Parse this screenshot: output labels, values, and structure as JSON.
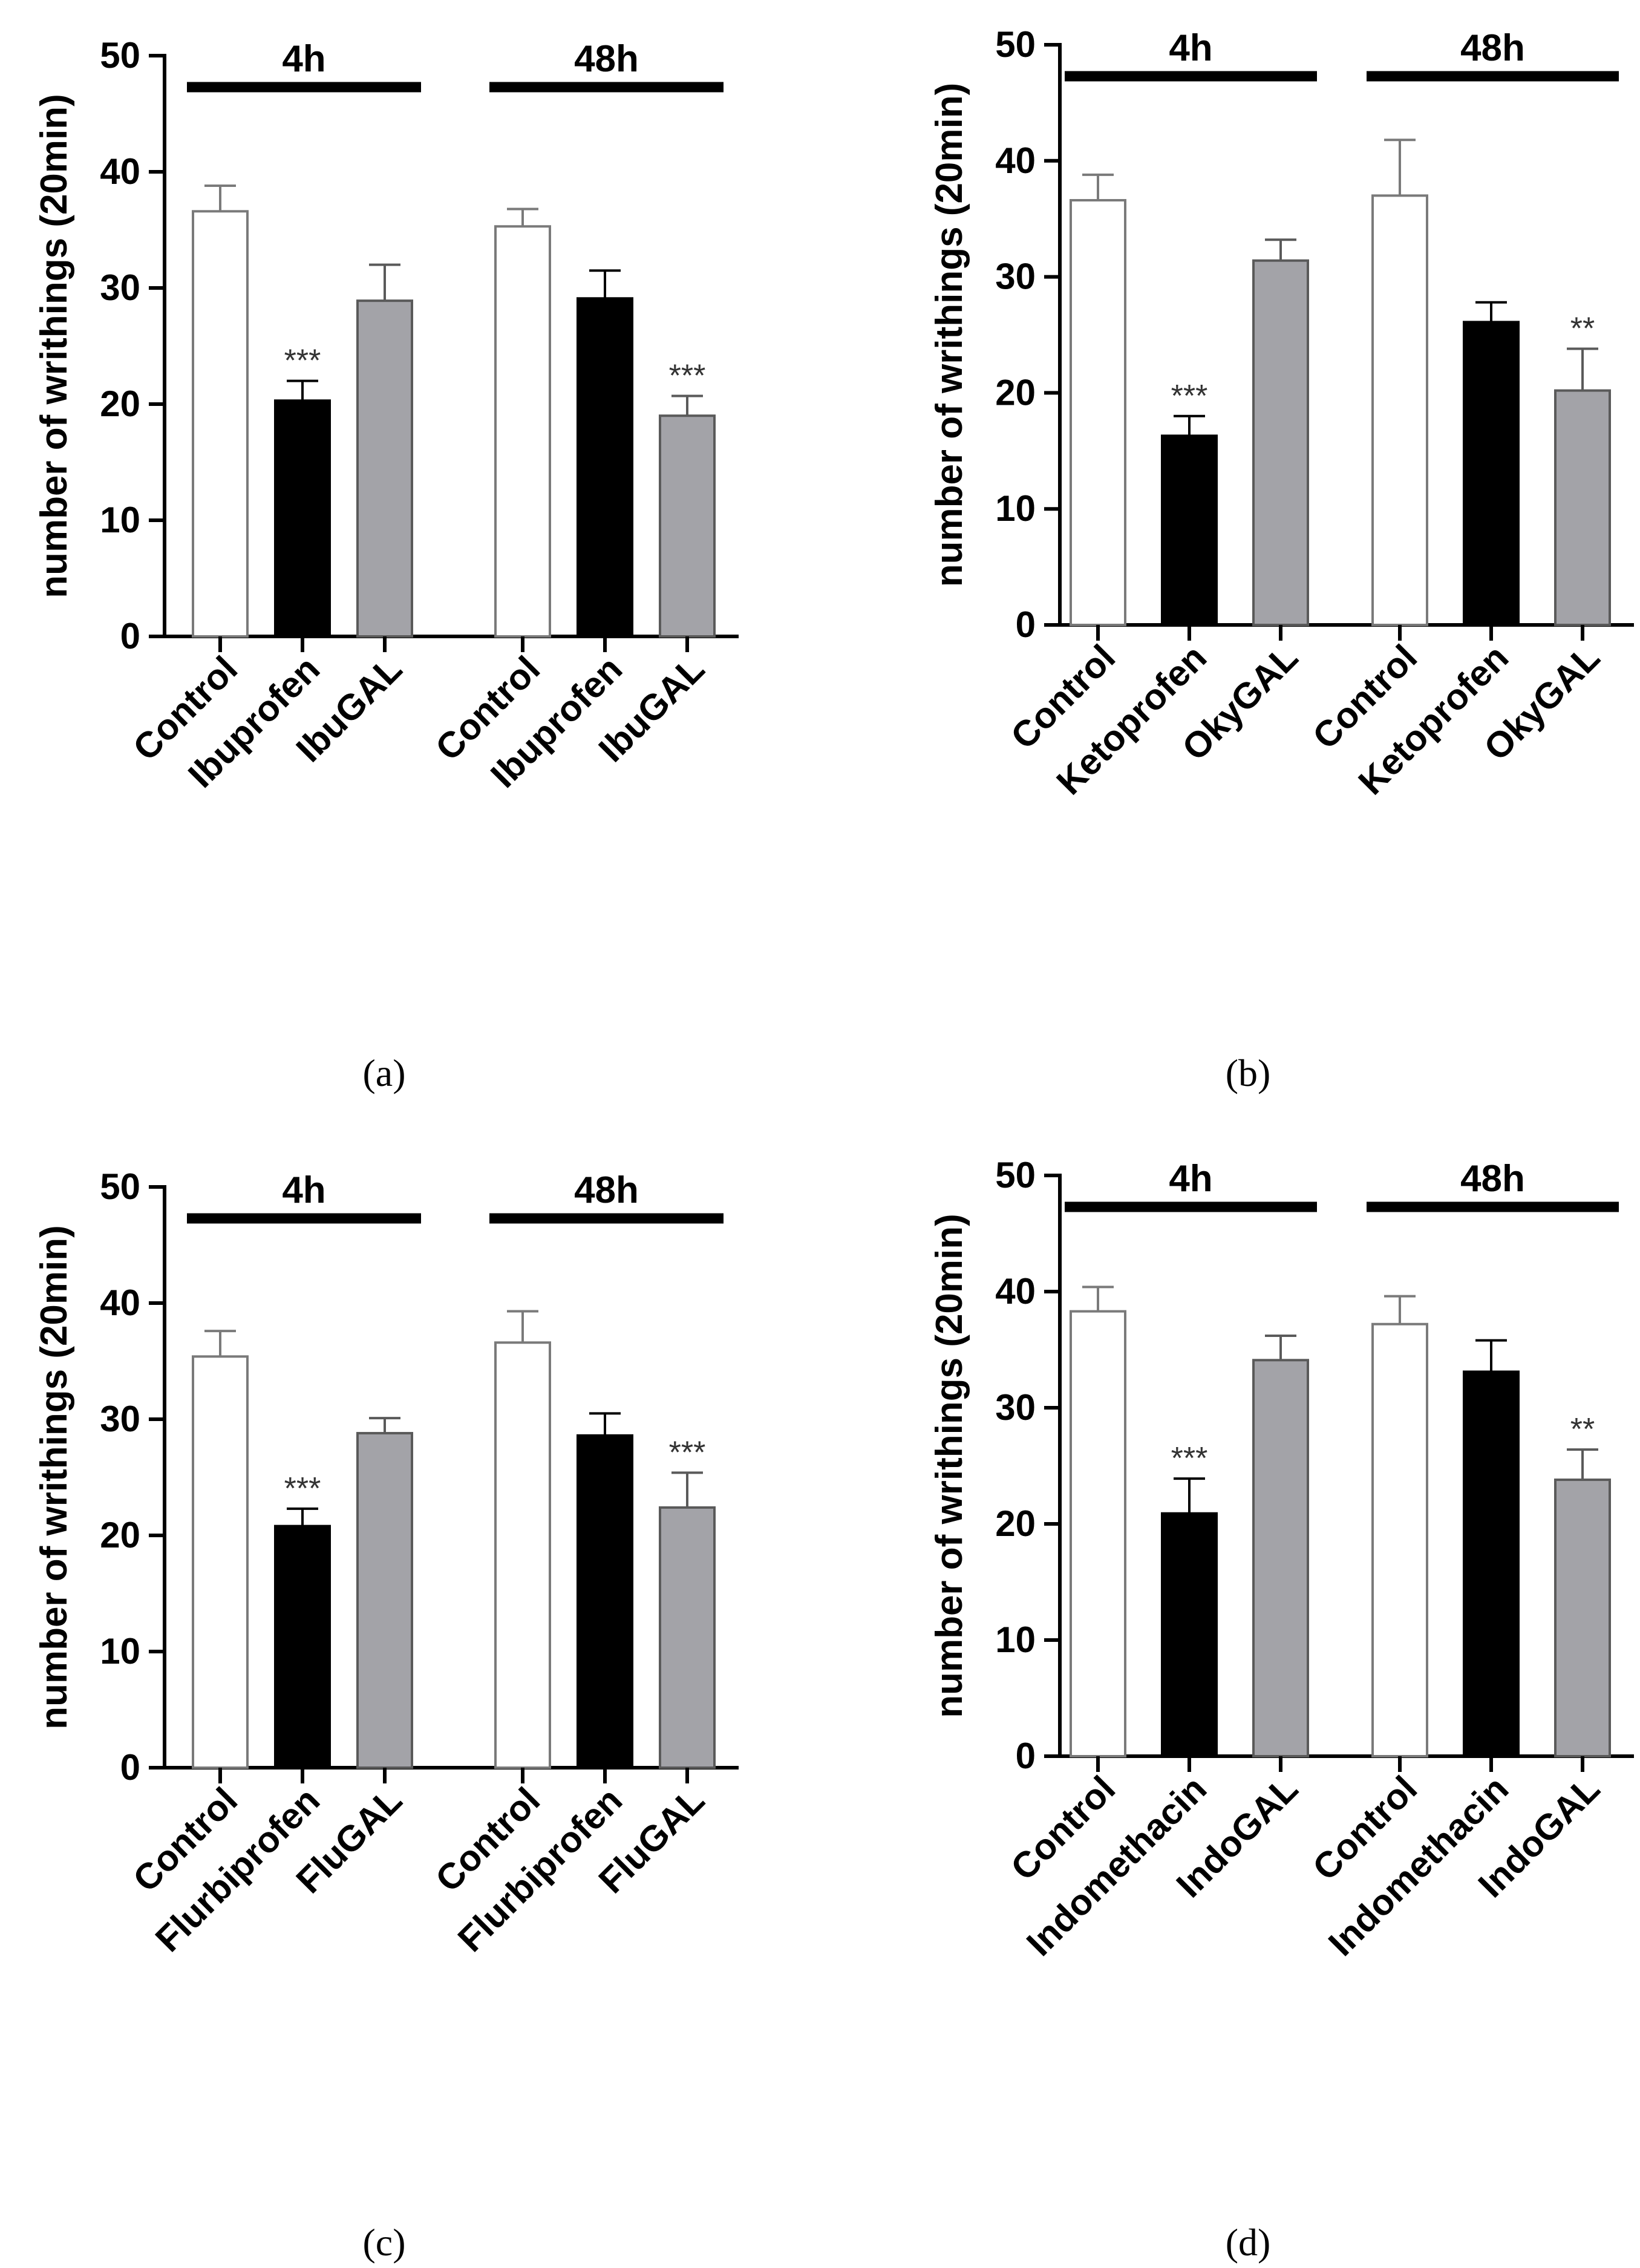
{
  "colors": {
    "control": "#ffffff",
    "drug": "#000000",
    "conjugate": "#a3a3a8",
    "axis": "#000000",
    "control_edge": "#7a7a7a",
    "conjugate_edge": "#5a5a5a"
  },
  "chart_data": [
    {
      "type": "bar",
      "panel": "(a)",
      "ylabel": "number of writhings (20min)",
      "ylim": [
        0,
        50
      ],
      "yticks": [
        "0",
        "10",
        "20",
        "30",
        "40",
        "50"
      ],
      "groups": [
        {
          "label": "4h",
          "bars": [
            {
              "category": "Control",
              "series": "control",
              "value": 36.6,
              "error": 2.2,
              "sig": ""
            },
            {
              "category": "Ibuprofen",
              "series": "drug",
              "value": 20.3,
              "error": 1.7,
              "sig": "***"
            },
            {
              "category": "IbuGAL",
              "series": "conjugate",
              "value": 28.9,
              "error": 3.1,
              "sig": ""
            }
          ]
        },
        {
          "label": "48h",
          "bars": [
            {
              "category": "Control",
              "series": "control",
              "value": 35.3,
              "error": 1.5,
              "sig": ""
            },
            {
              "category": "Ibuprofen",
              "series": "drug",
              "value": 29.1,
              "error": 2.4,
              "sig": ""
            },
            {
              "category": "IbuGAL",
              "series": "conjugate",
              "value": 19.0,
              "error": 1.7,
              "sig": "***"
            }
          ]
        }
      ]
    },
    {
      "type": "bar",
      "panel": "(b)",
      "ylabel": "number of writhings (20min)",
      "ylim": [
        0,
        50
      ],
      "yticks": [
        "0",
        "10",
        "20",
        "30",
        "40",
        "50"
      ],
      "groups": [
        {
          "label": "4h",
          "bars": [
            {
              "category": "Control",
              "series": "control",
              "value": 36.6,
              "error": 2.2,
              "sig": ""
            },
            {
              "category": "Ketoprofen",
              "series": "drug",
              "value": 16.3,
              "error": 1.7,
              "sig": "***"
            },
            {
              "category": "OkyGAL",
              "series": "conjugate",
              "value": 31.4,
              "error": 1.8,
              "sig": ""
            }
          ]
        },
        {
          "label": "48h",
          "bars": [
            {
              "category": "Control",
              "series": "control",
              "value": 37.0,
              "error": 4.8,
              "sig": ""
            },
            {
              "category": "Ketoprofen",
              "series": "drug",
              "value": 26.1,
              "error": 1.7,
              "sig": ""
            },
            {
              "category": "OkyGAL",
              "series": "conjugate",
              "value": 20.2,
              "error": 3.6,
              "sig": "**"
            }
          ]
        }
      ]
    },
    {
      "type": "bar",
      "panel": "(c)",
      "ylabel": "number of writhings (20min)",
      "ylim": [
        0,
        50
      ],
      "yticks": [
        "0",
        "10",
        "20",
        "30",
        "40",
        "50"
      ],
      "groups": [
        {
          "label": "4h",
          "bars": [
            {
              "category": "Control",
              "series": "control",
              "value": 35.4,
              "error": 2.2,
              "sig": ""
            },
            {
              "category": "Flurbiprofen",
              "series": "drug",
              "value": 20.8,
              "error": 1.5,
              "sig": "***"
            },
            {
              "category": "FluGAL",
              "series": "conjugate",
              "value": 28.8,
              "error": 1.3,
              "sig": ""
            }
          ]
        },
        {
          "label": "48h",
          "bars": [
            {
              "category": "Control",
              "series": "control",
              "value": 36.6,
              "error": 2.7,
              "sig": ""
            },
            {
              "category": "Flurbiprofen",
              "series": "drug",
              "value": 28.6,
              "error": 1.9,
              "sig": ""
            },
            {
              "category": "FluGAL",
              "series": "conjugate",
              "value": 22.4,
              "error": 3.0,
              "sig": "***"
            }
          ]
        }
      ]
    },
    {
      "type": "bar",
      "panel": "(d)",
      "ylabel": "number of writhings (20min)",
      "ylim": [
        0,
        50
      ],
      "yticks": [
        "0",
        "10",
        "20",
        "30",
        "40",
        "50"
      ],
      "groups": [
        {
          "label": "4h",
          "bars": [
            {
              "category": "Control",
              "series": "control",
              "value": 38.3,
              "error": 2.1,
              "sig": ""
            },
            {
              "category": "Indomethacin",
              "series": "drug",
              "value": 20.9,
              "error": 3.0,
              "sig": "***"
            },
            {
              "category": "IndoGAL",
              "series": "conjugate",
              "value": 34.1,
              "error": 2.1,
              "sig": ""
            }
          ]
        },
        {
          "label": "48h",
          "bars": [
            {
              "category": "Control",
              "series": "control",
              "value": 37.2,
              "error": 2.4,
              "sig": ""
            },
            {
              "category": "Indomethacin",
              "series": "drug",
              "value": 33.1,
              "error": 2.7,
              "sig": ""
            },
            {
              "category": "IndoGAL",
              "series": "conjugate",
              "value": 23.8,
              "error": 2.6,
              "sig": "**"
            }
          ]
        }
      ]
    }
  ]
}
